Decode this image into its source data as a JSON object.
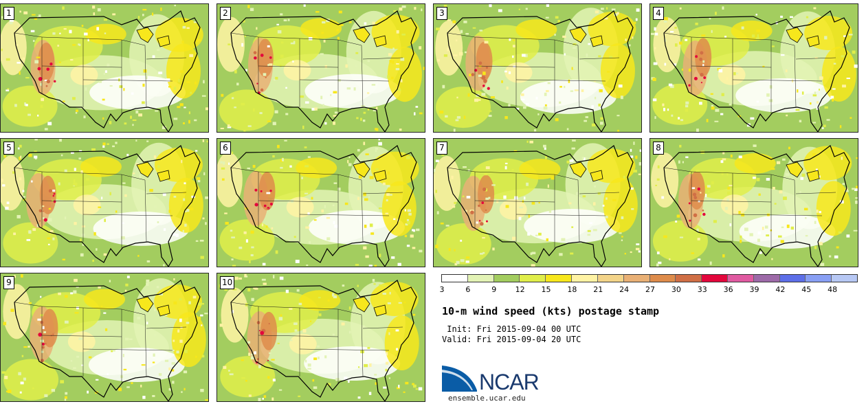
{
  "panels": [
    {
      "label": "1"
    },
    {
      "label": "2"
    },
    {
      "label": "3"
    },
    {
      "label": "4"
    },
    {
      "label": "5"
    },
    {
      "label": "6"
    },
    {
      "label": "7"
    },
    {
      "label": "8"
    },
    {
      "label": "9"
    },
    {
      "label": "10"
    }
  ],
  "colorbar": {
    "colors": [
      "#ffffff",
      "#e3f3b5",
      "#a3cd5f",
      "#e0ee4a",
      "#f7e71c",
      "#fff3a4",
      "#f3d489",
      "#e9b075",
      "#de8c4b",
      "#d06f45",
      "#e3073c",
      "#e05aa1",
      "#9d6aa8",
      "#5d6fe8",
      "#889ff4",
      "#b7c8f4"
    ],
    "ticks": [
      "3",
      "6",
      "9",
      "12",
      "15",
      "18",
      "21",
      "24",
      "27",
      "30",
      "33",
      "36",
      "39",
      "42",
      "45",
      "48"
    ]
  },
  "title": "10-m wind speed (kts) postage stamp",
  "init": " Init: Fri 2015-09-04 00 UTC",
  "valid": "Valid: Fri 2015-09-04 20 UTC",
  "logo": {
    "text": "NCAR",
    "url": "ensemble.ucar.edu",
    "color": "#0a5ca6"
  }
}
